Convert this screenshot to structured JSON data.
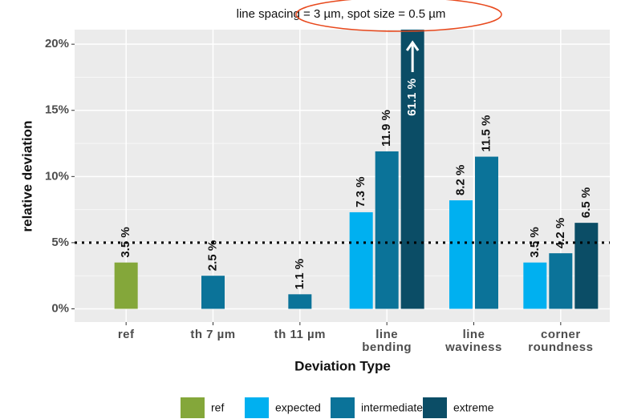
{
  "chart_data": {
    "type": "bar",
    "title": "line spacing = 3 µm, spot size = 0.5 µm",
    "x_label": "Deviation Type",
    "y_label": "relative deviation",
    "categories": [
      "ref",
      "th 7 µm",
      "th 11 µm",
      "line\nbending",
      "line\nwaviness",
      "corner\nroundness"
    ],
    "series": [
      {
        "name": "ref",
        "color": "#84a73a",
        "values": [
          3.5,
          null,
          null,
          null,
          null,
          null
        ],
        "value_labels": [
          "3.5 %",
          null,
          null,
          null,
          null,
          null
        ]
      },
      {
        "name": "expected",
        "color": "#00b0f0",
        "values": [
          null,
          null,
          null,
          7.3,
          8.2,
          3.5
        ],
        "value_labels": [
          null,
          null,
          null,
          "7.3 %",
          "8.2 %",
          "3.5 %"
        ]
      },
      {
        "name": "intermediate",
        "color": "#0b7399",
        "values": [
          null,
          2.5,
          1.1,
          11.9,
          11.5,
          4.2
        ],
        "value_labels": [
          null,
          "2.5 %",
          "1.1 %",
          "11.9 %",
          "11.5 %",
          "4.2 %"
        ]
      },
      {
        "name": "extreme",
        "color": "#0b4d66",
        "values": [
          null,
          null,
          null,
          61.1,
          null,
          6.5
        ],
        "value_labels": [
          null,
          null,
          null,
          "61.1 %",
          null,
          "6.5 %"
        ]
      }
    ],
    "ylim": [
      -1,
      21.1
    ],
    "yticks": [
      {
        "value": 0,
        "label": "0%"
      },
      {
        "value": 5,
        "label": "5%"
      },
      {
        "value": 10,
        "label": "10%"
      },
      {
        "value": 15,
        "label": "15%"
      },
      {
        "value": 20,
        "label": "20%"
      }
    ],
    "hline": 5,
    "grid": true
  }
}
